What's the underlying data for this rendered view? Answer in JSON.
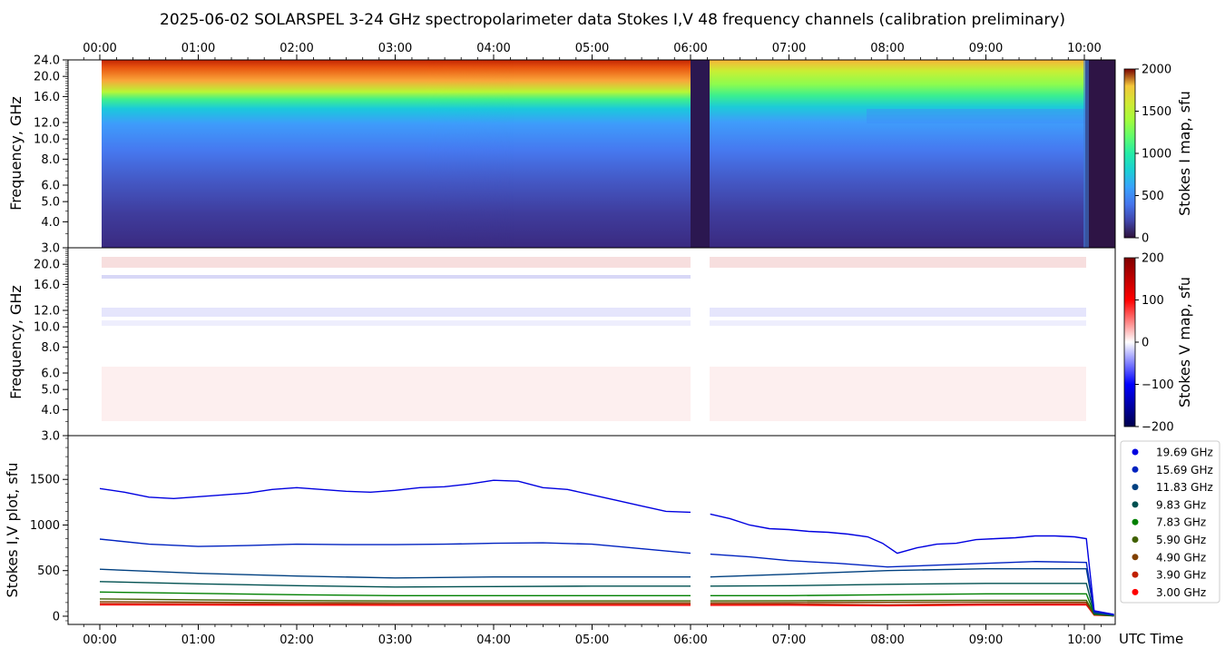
{
  "title": "2025-06-02  SOLARSPEL  3-24 GHz spectropolarimeter data   Stokes I,V   48 frequency channels   (calibration preliminary)",
  "time_ticks": [
    "00:00",
    "01:00",
    "02:00",
    "03:00",
    "04:00",
    "05:00",
    "06:00",
    "07:00",
    "08:00",
    "09:00",
    "10:00"
  ],
  "x_axis_label": "UTC Time",
  "chart_data": [
    {
      "type": "heatmap",
      "panel": "Stokes I map",
      "ylabel": "Frequency, GHz",
      "ytick_labels": [
        "3.0",
        "4.0",
        "5.0",
        "6.0",
        "8.0",
        "10.0",
        "12.0",
        "16.0",
        "20.0",
        "24.0"
      ],
      "ytick_values": [
        3,
        4,
        5,
        6,
        8,
        10,
        12,
        16,
        20,
        24
      ],
      "ylim": [
        3,
        24
      ],
      "y_scale": "log",
      "colorbar_label": "Stokes I map, sfu",
      "colorbar_ticks": [
        "0",
        "500",
        "1000",
        "1500",
        "2000"
      ],
      "colorbar_range": [
        0,
        2000
      ],
      "colormap": "turbo",
      "data_gap_utc": [
        "06:00",
        "06:12"
      ],
      "observation_end_utc": "10:05"
    },
    {
      "type": "heatmap",
      "panel": "Stokes V map",
      "ylabel": "Frequency, GHz",
      "ytick_labels": [
        "3.0",
        "4.0",
        "5.0",
        "6.0",
        "8.0",
        "10.0",
        "12.0",
        "16.0",
        "20.0"
      ],
      "ytick_values": [
        3,
        4,
        5,
        6,
        8,
        10,
        12,
        16,
        20
      ],
      "ylim": [
        3,
        24
      ],
      "y_scale": "log",
      "colorbar_label": "Stokes V map, sfu",
      "colorbar_ticks": [
        "−200",
        "−100",
        "0",
        "100",
        "200"
      ],
      "colorbar_range": [
        -200,
        200
      ],
      "colormap": "seismic"
    },
    {
      "type": "line",
      "panel": "Stokes I,V plot",
      "ylabel": "Stokes I,V plot, sfu",
      "ytick_labels": [
        "0",
        "500",
        "1000",
        "1500"
      ],
      "ylim": [
        -90,
        1980
      ],
      "x_unit": "UTC hour",
      "xlim": [
        -0.33,
        10.33
      ],
      "series": [
        {
          "name": "19.69 GHz",
          "color": "#0000e0",
          "x": [
            0,
            0.25,
            0.5,
            0.75,
            1,
            1.25,
            1.5,
            1.75,
            2,
            2.25,
            2.5,
            2.75,
            3,
            3.25,
            3.5,
            3.75,
            4,
            4.25,
            4.5,
            4.75,
            5,
            5.25,
            5.5,
            5.75,
            6,
            6.2,
            6.4,
            6.6,
            6.8,
            7,
            7.2,
            7.4,
            7.6,
            7.8,
            7.95,
            8.1,
            8.3,
            8.5,
            8.7,
            8.9,
            9.1,
            9.3,
            9.5,
            9.7,
            9.9,
            10.02,
            10.1,
            10.3
          ],
          "values": [
            1400,
            1360,
            1305,
            1290,
            1310,
            1330,
            1350,
            1390,
            1410,
            1390,
            1370,
            1360,
            1380,
            1410,
            1420,
            1450,
            1490,
            1480,
            1410,
            1390,
            1330,
            1270,
            1210,
            1150,
            1140,
            1120,
            1070,
            1000,
            960,
            950,
            930,
            920,
            900,
            870,
            800,
            690,
            750,
            790,
            800,
            840,
            850,
            860,
            880,
            880,
            870,
            850,
            60,
            20
          ]
        },
        {
          "name": "15.69 GHz",
          "color": "#0022c0",
          "x": [
            0,
            0.5,
            1,
            1.5,
            2,
            2.5,
            3,
            3.5,
            4,
            4.5,
            5,
            5.5,
            6,
            6.2,
            6.6,
            7,
            7.5,
            8,
            8.5,
            9,
            9.5,
            10.02,
            10.1,
            10.3
          ],
          "values": [
            845,
            790,
            765,
            775,
            790,
            785,
            785,
            790,
            800,
            805,
            790,
            740,
            690,
            680,
            650,
            610,
            580,
            540,
            560,
            580,
            600,
            590,
            50,
            15
          ]
        },
        {
          "name": "11.83 GHz",
          "color": "#004080",
          "x": [
            0,
            1,
            2,
            3,
            4,
            5,
            6,
            6.2,
            7,
            8,
            9,
            10.02,
            10.1,
            10.3
          ],
          "values": [
            515,
            470,
            440,
            420,
            430,
            430,
            430,
            430,
            460,
            500,
            520,
            520,
            40,
            10
          ]
        },
        {
          "name": "9.83 GHz",
          "color": "#005050",
          "x": [
            0,
            1,
            2,
            3,
            4,
            5,
            6,
            6.2,
            7,
            8,
            9,
            10.02,
            10.1,
            10.3
          ],
          "values": [
            380,
            355,
            335,
            320,
            325,
            330,
            330,
            330,
            335,
            350,
            360,
            360,
            30,
            10
          ]
        },
        {
          "name": "7.83 GHz",
          "color": "#008000",
          "x": [
            0,
            1,
            2,
            3,
            4,
            5,
            6,
            6.2,
            7,
            8,
            9,
            10.02,
            10.1,
            10.3
          ],
          "values": [
            265,
            250,
            235,
            225,
            225,
            225,
            225,
            225,
            225,
            235,
            245,
            245,
            25,
            5
          ]
        },
        {
          "name": "5.90 GHz",
          "color": "#406000",
          "x": [
            0,
            1,
            2,
            3,
            4,
            5,
            6,
            6.2,
            7,
            8,
            9,
            10.02,
            10.1,
            10.3
          ],
          "values": [
            190,
            180,
            172,
            168,
            168,
            168,
            168,
            168,
            170,
            172,
            175,
            175,
            20,
            5
          ]
        },
        {
          "name": "4.90 GHz",
          "color": "#804000",
          "x": [
            0,
            1,
            2,
            3,
            4,
            5,
            6,
            6.2,
            7,
            8,
            9,
            10.02,
            10.1,
            10.3
          ],
          "values": [
            160,
            155,
            150,
            148,
            148,
            148,
            148,
            148,
            150,
            152,
            155,
            155,
            18,
            5
          ]
        },
        {
          "name": "3.90 GHz",
          "color": "#c02000",
          "x": [
            0,
            1,
            2,
            3,
            4,
            5,
            6,
            6.2,
            7,
            8,
            9,
            10.02,
            10.1,
            10.3
          ],
          "values": [
            140,
            138,
            135,
            133,
            133,
            133,
            133,
            133,
            134,
            125,
            135,
            138,
            15,
            5
          ]
        },
        {
          "name": "3.00 GHz",
          "color": "#ff0000",
          "x": [
            0,
            1,
            2,
            3,
            4,
            5,
            6,
            6.2,
            7,
            8,
            9,
            10.02,
            10.1,
            10.3
          ],
          "values": [
            125,
            123,
            121,
            120,
            120,
            120,
            120,
            120,
            121,
            115,
            122,
            124,
            12,
            4
          ]
        }
      ]
    }
  ]
}
